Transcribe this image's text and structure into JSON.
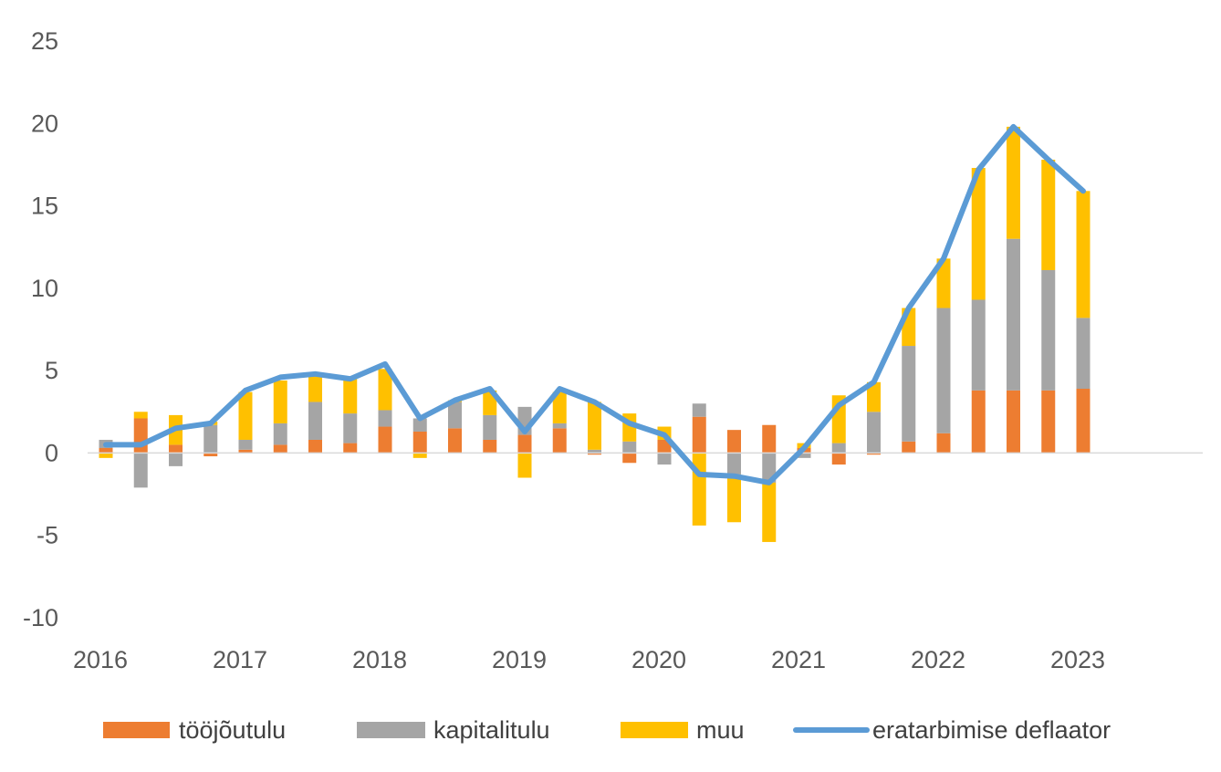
{
  "chart_data": {
    "type": "bar",
    "stacked": true,
    "x": [
      "2016Q1",
      "2016Q2",
      "2016Q3",
      "2016Q4",
      "2017Q1",
      "2017Q2",
      "2017Q3",
      "2017Q4",
      "2018Q1",
      "2018Q2",
      "2018Q3",
      "2018Q4",
      "2019Q1",
      "2019Q2",
      "2019Q3",
      "2019Q4",
      "2020Q1",
      "2020Q2",
      "2020Q3",
      "2020Q4",
      "2021Q1",
      "2021Q2",
      "2021Q3",
      "2021Q4",
      "2022Q1",
      "2022Q2",
      "2022Q3",
      "2022Q4",
      "2023Q1"
    ],
    "x_tick_labels": [
      "2016",
      "2017",
      "2018",
      "2019",
      "2020",
      "2021",
      "2022",
      "2023"
    ],
    "ylim": [
      -10,
      25
    ],
    "y_ticks": [
      -10,
      -5,
      0,
      5,
      10,
      15,
      20,
      25
    ],
    "series": [
      {
        "name": "tööjõutulu",
        "kind": "bar",
        "color": "#ED7D31",
        "values": [
          0.3,
          2.1,
          0.5,
          -0.2,
          0.2,
          0.5,
          0.8,
          0.6,
          1.6,
          1.3,
          1.5,
          0.8,
          1.1,
          1.5,
          -0.1,
          -0.6,
          0.8,
          2.2,
          1.4,
          1.7,
          0.3,
          -0.7,
          -0.1,
          0.7,
          1.2,
          3.8,
          3.8,
          3.8,
          3.9
        ]
      },
      {
        "name": "kapitalitulu",
        "kind": "bar",
        "color": "#A5A5A5",
        "values": [
          0.5,
          -2.1,
          -0.8,
          1.7,
          0.6,
          1.3,
          2.3,
          1.8,
          1.0,
          0.8,
          1.6,
          1.5,
          1.7,
          0.3,
          0.2,
          0.7,
          -0.7,
          0.8,
          -1.3,
          -1.8,
          -0.3,
          0.6,
          2.5,
          5.8,
          7.6,
          5.5,
          9.2,
          7.3,
          4.3
        ]
      },
      {
        "name": "muu",
        "kind": "bar",
        "color": "#FFC000",
        "values": [
          -0.3,
          0.4,
          1.8,
          0.2,
          2.9,
          2.6,
          1.6,
          2.1,
          2.5,
          -0.3,
          0.1,
          1.5,
          -1.5,
          1.9,
          2.9,
          1.7,
          0.8,
          -4.4,
          -2.9,
          -3.6,
          0.3,
          2.9,
          1.8,
          2.3,
          3.0,
          8.0,
          6.8,
          6.7,
          7.7
        ]
      },
      {
        "name": "eratarbimise deflaator",
        "kind": "line",
        "color": "#5B9BD5",
        "values": [
          0.5,
          0.5,
          1.5,
          1.8,
          3.8,
          4.6,
          4.8,
          4.5,
          5.4,
          2.1,
          3.2,
          3.9,
          1.3,
          3.9,
          3.1,
          1.8,
          1.1,
          -1.3,
          -1.4,
          -1.8,
          0.3,
          2.9,
          4.3,
          8.8,
          11.8,
          17.2,
          19.8,
          17.8,
          15.9
        ]
      }
    ],
    "legend_position": "bottom",
    "grid": false
  }
}
